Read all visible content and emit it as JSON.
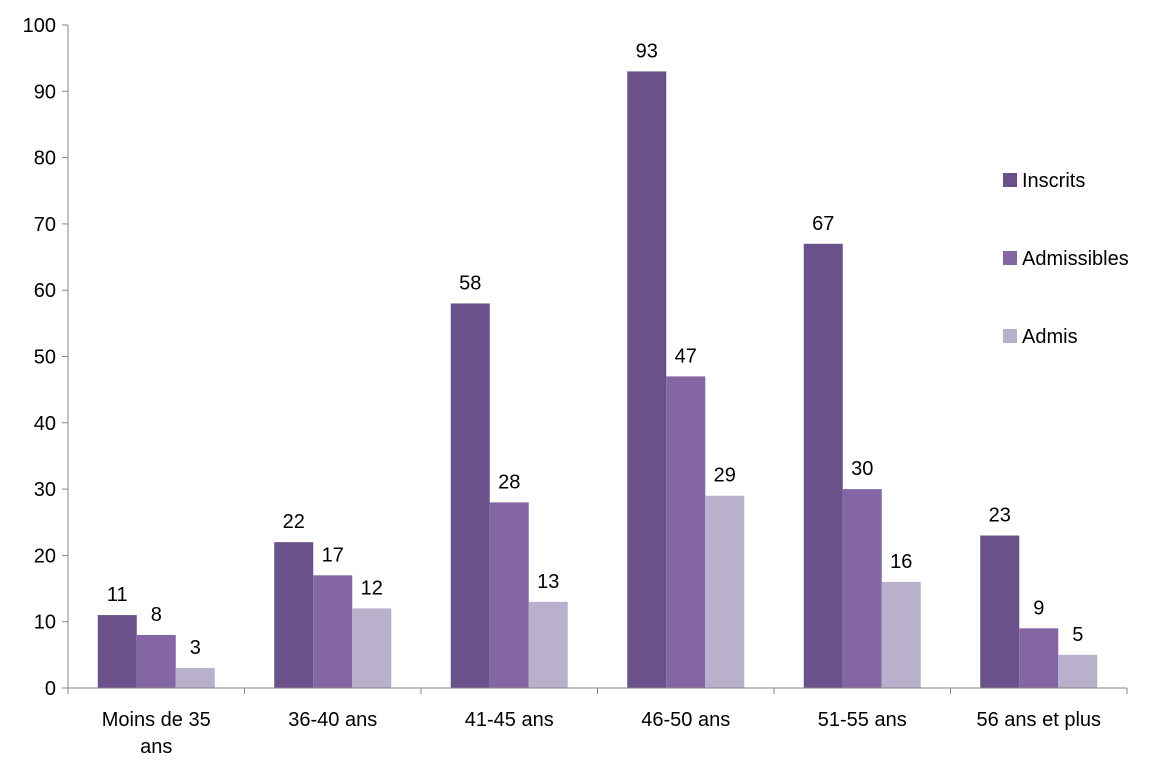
{
  "chart_data": {
    "type": "bar",
    "title": "",
    "xlabel": "",
    "ylabel": "",
    "ylim": [
      0,
      100
    ],
    "yticks": [
      0,
      10,
      20,
      30,
      40,
      50,
      60,
      70,
      80,
      90,
      100
    ],
    "grid": false,
    "legend_position": "right",
    "categories": [
      [
        "Moins de 35",
        "ans"
      ],
      [
        "36-40 ans"
      ],
      [
        "41-45 ans"
      ],
      [
        "46-50 ans"
      ],
      [
        "51-55 ans"
      ],
      [
        "56 ans et plus"
      ]
    ],
    "series": [
      {
        "name": "Inscrits",
        "color": "#6a5189",
        "values": [
          11,
          22,
          58,
          93,
          67,
          23
        ]
      },
      {
        "name": "Admissibles",
        "color": "#8466a4",
        "values": [
          8,
          17,
          28,
          47,
          30,
          9
        ]
      },
      {
        "name": "Admis",
        "color": "#b9b0cc",
        "values": [
          3,
          12,
          13,
          29,
          16,
          5
        ]
      }
    ]
  }
}
